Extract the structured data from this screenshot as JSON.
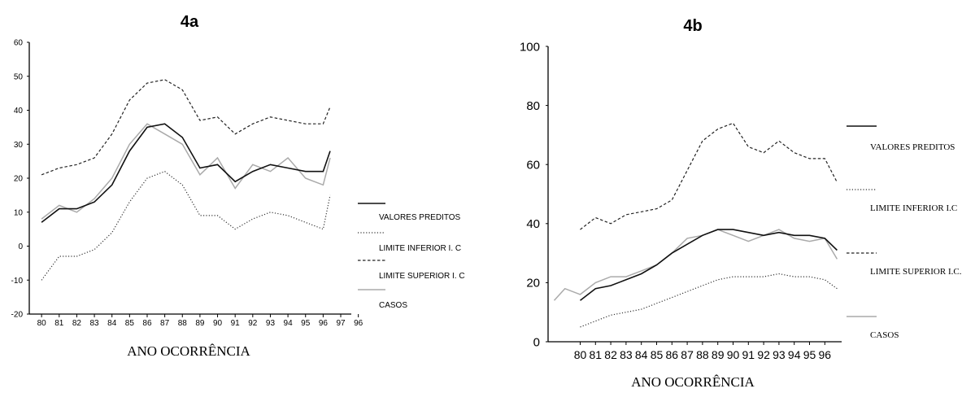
{
  "chart_data": [
    {
      "type": "line",
      "title": "4a",
      "xlabel": "ANO OCORRÊNCIA",
      "ylabel": "",
      "ylim": [
        -20,
        60
      ],
      "yticks": [
        "60",
        "50",
        "40",
        "30",
        "20",
        "10",
        "0",
        "-10",
        "-20"
      ],
      "xticks": [
        "80",
        "81",
        "82",
        "83",
        "84",
        "85",
        "86",
        "87",
        "88",
        "89",
        "90",
        "91",
        "92",
        "93",
        "94",
        "95",
        "96",
        "97",
        "96"
      ],
      "legend_position": "right",
      "grid": false,
      "series": [
        {
          "name": "VALORES PREDITOS",
          "style": "solid",
          "color": "#111111",
          "x": [
            80,
            81,
            82,
            83,
            84,
            85,
            86,
            87,
            88,
            89,
            90,
            91,
            92,
            93,
            94,
            95,
            96,
            96.4
          ],
          "y": [
            7,
            11,
            11,
            13,
            18,
            28,
            35,
            36,
            32,
            23,
            24,
            19,
            22,
            24,
            23,
            22,
            22,
            28
          ]
        },
        {
          "name": "LIMITE INFERIOR I. C",
          "style": "dotted",
          "color": "#333333",
          "x": [
            80,
            81,
            82,
            83,
            84,
            85,
            86,
            87,
            88,
            89,
            90,
            91,
            92,
            93,
            94,
            95,
            96,
            96.4
          ],
          "y": [
            -10,
            -3,
            -3,
            -1,
            4,
            13,
            20,
            22,
            18,
            9,
            9,
            5,
            8,
            10,
            9,
            7,
            5,
            15
          ]
        },
        {
          "name": "LIMITE SUPERIOR I. C",
          "style": "dashed",
          "color": "#222222",
          "x": [
            80,
            81,
            82,
            83,
            84,
            85,
            86,
            87,
            88,
            89,
            90,
            91,
            92,
            93,
            94,
            95,
            96,
            96.4
          ],
          "y": [
            21,
            23,
            24,
            26,
            33,
            43,
            48,
            49,
            46,
            37,
            38,
            33,
            36,
            38,
            37,
            36,
            36,
            41
          ]
        },
        {
          "name": "CASOS",
          "style": "solid",
          "color": "#aaaaaa",
          "x": [
            80,
            81,
            82,
            83,
            84,
            85,
            86,
            87,
            88,
            89,
            90,
            91,
            92,
            93,
            94,
            95,
            96,
            96.4
          ],
          "y": [
            8,
            12,
            10,
            14,
            20,
            30,
            36,
            33,
            30,
            21,
            26,
            17,
            24,
            22,
            26,
            20,
            18,
            26
          ]
        }
      ]
    },
    {
      "type": "line",
      "title": "4b",
      "xlabel": "ANO OCORRÊNCIA",
      "ylabel": "",
      "ylim": [
        0,
        100
      ],
      "yticks": [
        "100",
        "80",
        "60",
        "40",
        "20",
        "0"
      ],
      "xticks": [
        "80",
        "81",
        "82",
        "83",
        "84",
        "85",
        "86",
        "87",
        "88",
        "89",
        "90",
        "91",
        "92",
        "93",
        "94",
        "95",
        "96"
      ],
      "legend_position": "right",
      "grid": false,
      "series": [
        {
          "name": "VALORES PREDITOS",
          "style": "solid",
          "color": "#111111",
          "x": [
            80,
            81,
            82,
            83,
            84,
            85,
            86,
            87,
            88,
            89,
            90,
            91,
            92,
            93,
            94,
            95,
            96,
            96.8
          ],
          "y": [
            14,
            18,
            19,
            21,
            23,
            26,
            30,
            33,
            36,
            38,
            38,
            37,
            36,
            37,
            36,
            36,
            35,
            31
          ]
        },
        {
          "name": "LIMITE INFERIOR I.C",
          "style": "dotted",
          "color": "#333333",
          "x": [
            80,
            81,
            82,
            83,
            84,
            85,
            86,
            87,
            88,
            89,
            90,
            91,
            92,
            93,
            94,
            95,
            96,
            96.8
          ],
          "y": [
            5,
            7,
            9,
            10,
            11,
            13,
            15,
            17,
            19,
            21,
            22,
            22,
            22,
            23,
            22,
            22,
            21,
            18
          ]
        },
        {
          "name": "LIMITE SUPERIOR I.C.",
          "style": "dashed",
          "color": "#222222",
          "x": [
            80,
            81,
            82,
            83,
            84,
            85,
            86,
            87,
            88,
            89,
            90,
            91,
            92,
            93,
            94,
            95,
            96,
            96.8
          ],
          "y": [
            38,
            42,
            40,
            43,
            44,
            45,
            48,
            58,
            68,
            72,
            74,
            66,
            64,
            68,
            64,
            62,
            62,
            54
          ]
        },
        {
          "name": "CASOS",
          "style": "solid",
          "color": "#aaaaaa",
          "x": [
            78.3,
            79,
            80,
            81,
            82,
            83,
            84,
            85,
            86,
            87,
            88,
            89,
            90,
            91,
            92,
            93,
            94,
            95,
            96,
            96.8
          ],
          "y": [
            14,
            18,
            16,
            20,
            22,
            22,
            24,
            26,
            30,
            35,
            36,
            38,
            36,
            34,
            36,
            38,
            35,
            34,
            35,
            28
          ]
        }
      ]
    }
  ]
}
